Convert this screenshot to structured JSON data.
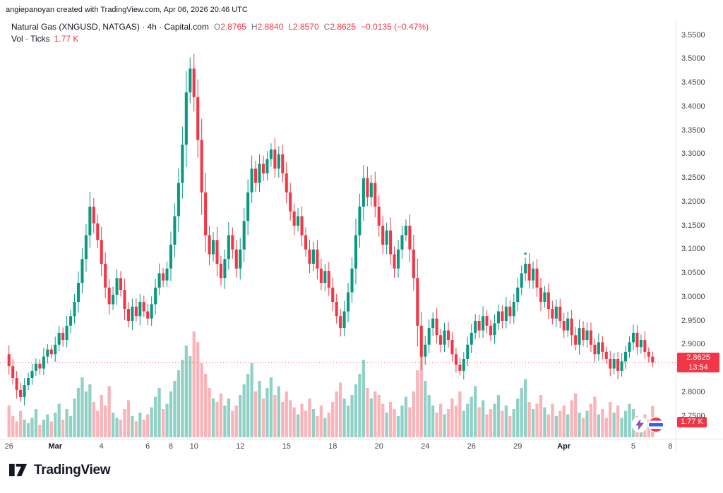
{
  "attribution": "angiepanoyan created with TradingView.com, Apr 06, 2026 20:46 UTC",
  "legend": {
    "title": "Natural Gas (XNGUSD, NATGAS) · 4h · Capital.com",
    "ohlc": {
      "o_label": "O",
      "o": "2.8765",
      "h_label": "H",
      "h": "2.8840",
      "l_label": "L",
      "l": "2.8570",
      "c_label": "C",
      "c": "2.8625",
      "change": "−0.0135 (−0.47%)"
    },
    "vol_label": "Vol · Ticks",
    "vol_value": "1.77 K"
  },
  "price_line": {
    "price": 2.8625,
    "label": "2.8625",
    "countdown": "13:54"
  },
  "volume_badge": "1.77 K",
  "price_axis": {
    "ticks": [
      "3.5500",
      "3.5000",
      "3.4500",
      "3.4000",
      "3.3500",
      "3.3000",
      "3.2500",
      "3.2000",
      "3.1500",
      "3.1000",
      "3.0500",
      "3.0000",
      "2.9500",
      "2.9000",
      "2.8500",
      "2.8000",
      "2.7500"
    ]
  },
  "time_axis": {
    "ticks": [
      {
        "label": "26",
        "d": 0
      },
      {
        "label": "Mar",
        "d": 2
      },
      {
        "label": "4",
        "d": 4
      },
      {
        "label": "6",
        "d": 6
      },
      {
        "label": "8",
        "d": 7
      },
      {
        "label": "10",
        "d": 8
      },
      {
        "label": "12",
        "d": 10
      },
      {
        "label": "15",
        "d": 12
      },
      {
        "label": "18",
        "d": 14
      },
      {
        "label": "20",
        "d": 16
      },
      {
        "label": "24",
        "d": 18
      },
      {
        "label": "26",
        "d": 20
      },
      {
        "label": "29",
        "d": 22
      },
      {
        "label": "Apr",
        "d": 24
      },
      {
        "label": "5",
        "d": 27
      },
      {
        "label": "8",
        "d": 28.6
      }
    ]
  },
  "colors": {
    "up": "#089981",
    "down": "#f23645",
    "vol_up": "rgba(8,153,129,0.45)",
    "vol_down": "rgba(242,54,69,0.38)",
    "accent_red": "#f23645",
    "axis_line": "#e0e3eb"
  },
  "logo": {
    "text": "TradingView"
  },
  "chart_data": {
    "type": "candlestick",
    "symbol": "XNGUSD",
    "name": "Natural Gas",
    "timeframe": "4h",
    "exchange": "Capital.com",
    "price_range": [
      2.75,
      3.55
    ],
    "price_step": 0.05,
    "last_price": 2.8625,
    "last_change": -0.0135,
    "last_change_pct": -0.47,
    "volume_ticks_last": 1.77,
    "first_open": 2.88,
    "bars_per_day": 6,
    "marker": {
      "index": 134,
      "price": 3.085
    },
    "candles_format": [
      "close",
      "volume_k_ticks"
    ],
    "candles": [
      [
        2.855,
        1.8
      ],
      [
        2.83,
        1.2
      ],
      [
        2.805,
        0.9
      ],
      [
        2.79,
        1.5
      ],
      [
        2.815,
        1.0
      ],
      [
        2.83,
        0.8
      ],
      [
        2.845,
        1.1
      ],
      [
        2.86,
        1.6
      ],
      [
        2.85,
        0.7
      ],
      [
        2.875,
        1.0
      ],
      [
        2.89,
        1.3
      ],
      [
        2.88,
        0.9
      ],
      [
        2.9,
        1.4
      ],
      [
        2.925,
        1.9
      ],
      [
        2.91,
        1.0
      ],
      [
        2.94,
        1.6
      ],
      [
        2.96,
        1.2
      ],
      [
        2.99,
        2.2
      ],
      [
        3.03,
        2.8
      ],
      [
        3.08,
        3.4
      ],
      [
        3.13,
        2.6
      ],
      [
        3.19,
        3.0
      ],
      [
        3.155,
        2.0
      ],
      [
        3.12,
        1.5
      ],
      [
        3.07,
        2.4
      ],
      [
        3.02,
        1.8
      ],
      [
        2.985,
        2.9
      ],
      [
        3.005,
        1.4
      ],
      [
        3.04,
        1.1
      ],
      [
        3.015,
        1.0
      ],
      [
        2.975,
        1.6
      ],
      [
        2.95,
        2.1
      ],
      [
        2.98,
        1.2
      ],
      [
        2.96,
        0.9
      ],
      [
        2.99,
        1.4
      ],
      [
        2.97,
        1.0
      ],
      [
        2.955,
        1.3
      ],
      [
        2.985,
        1.7
      ],
      [
        3.02,
        2.3
      ],
      [
        3.05,
        2.8
      ],
      [
        3.035,
        1.6
      ],
      [
        3.06,
        1.9
      ],
      [
        3.11,
        2.6
      ],
      [
        3.17,
        3.2
      ],
      [
        3.24,
        3.8
      ],
      [
        3.32,
        4.4
      ],
      [
        3.43,
        5.2
      ],
      [
        3.48,
        4.6
      ],
      [
        3.42,
        6.0
      ],
      [
        3.33,
        5.4
      ],
      [
        3.22,
        4.2
      ],
      [
        3.13,
        3.6
      ],
      [
        3.09,
        2.8
      ],
      [
        3.12,
        2.2
      ],
      [
        3.07,
        2.0
      ],
      [
        3.04,
        2.5
      ],
      [
        3.08,
        1.8
      ],
      [
        3.13,
        2.2
      ],
      [
        3.1,
        1.5
      ],
      [
        3.06,
        1.8
      ],
      [
        3.1,
        2.4
      ],
      [
        3.16,
        3.0
      ],
      [
        3.22,
        3.6
      ],
      [
        3.27,
        4.2
      ],
      [
        3.24,
        2.6
      ],
      [
        3.28,
        3.2
      ],
      [
        3.26,
        2.2
      ],
      [
        3.29,
        2.8
      ],
      [
        3.31,
        3.4
      ],
      [
        3.27,
        2.4
      ],
      [
        3.3,
        2.9
      ],
      [
        3.26,
        2.0
      ],
      [
        3.22,
        2.6
      ],
      [
        3.18,
        2.1
      ],
      [
        3.15,
        1.7
      ],
      [
        3.17,
        1.3
      ],
      [
        3.13,
        1.9
      ],
      [
        3.1,
        1.5
      ],
      [
        3.07,
        2.2
      ],
      [
        3.1,
        1.6
      ],
      [
        3.06,
        1.2
      ],
      [
        3.03,
        1.8
      ],
      [
        3.055,
        1.1
      ],
      [
        3.02,
        1.4
      ],
      [
        2.99,
        2.0
      ],
      [
        2.96,
        2.6
      ],
      [
        2.935,
        3.1
      ],
      [
        2.97,
        2.2
      ],
      [
        3.01,
        1.8
      ],
      [
        3.06,
        2.4
      ],
      [
        3.13,
        3.0
      ],
      [
        3.19,
        3.6
      ],
      [
        3.25,
        4.4
      ],
      [
        3.21,
        2.8
      ],
      [
        3.24,
        2.2
      ],
      [
        3.19,
        2.6
      ],
      [
        3.15,
        2.4
      ],
      [
        3.11,
        1.9
      ],
      [
        3.14,
        1.4
      ],
      [
        3.09,
        2.0
      ],
      [
        3.06,
        1.6
      ],
      [
        3.1,
        1.2
      ],
      [
        3.13,
        1.8
      ],
      [
        3.15,
        2.3
      ],
      [
        3.1,
        1.7
      ],
      [
        3.04,
        2.6
      ],
      [
        2.94,
        3.8
      ],
      [
        2.875,
        4.6
      ],
      [
        2.9,
        3.2
      ],
      [
        2.935,
        2.4
      ],
      [
        2.955,
        1.8
      ],
      [
        2.92,
        1.4
      ],
      [
        2.9,
        1.9
      ],
      [
        2.93,
        1.3
      ],
      [
        2.91,
        1.6
      ],
      [
        2.88,
        2.2
      ],
      [
        2.858,
        1.8
      ],
      [
        2.845,
        2.6
      ],
      [
        2.87,
        1.5
      ],
      [
        2.9,
        1.9
      ],
      [
        2.925,
        2.3
      ],
      [
        2.95,
        2.9
      ],
      [
        2.93,
        1.7
      ],
      [
        2.96,
        2.1
      ],
      [
        2.94,
        1.3
      ],
      [
        2.92,
        1.6
      ],
      [
        2.945,
        1.9
      ],
      [
        2.97,
        2.4
      ],
      [
        2.95,
        1.5
      ],
      [
        2.98,
        1.8
      ],
      [
        2.96,
        1.2
      ],
      [
        2.99,
        1.6
      ],
      [
        3.02,
        2.2
      ],
      [
        3.05,
        2.8
      ],
      [
        3.07,
        3.3
      ],
      [
        3.035,
        2.0
      ],
      [
        3.06,
        1.6
      ],
      [
        3.02,
        1.9
      ],
      [
        2.99,
        2.4
      ],
      [
        3.01,
        1.7
      ],
      [
        2.975,
        1.3
      ],
      [
        2.955,
        1.9
      ],
      [
        2.98,
        1.2
      ],
      [
        2.95,
        1.5
      ],
      [
        2.93,
        1.8
      ],
      [
        2.955,
        1.3
      ],
      [
        2.92,
        2.1
      ],
      [
        2.9,
        2.5
      ],
      [
        2.935,
        1.4
      ],
      [
        2.91,
        1.1
      ],
      [
        2.93,
        1.5
      ],
      [
        2.9,
        1.9
      ],
      [
        2.88,
        2.3
      ],
      [
        2.905,
        1.3
      ],
      [
        2.885,
        1.6
      ],
      [
        2.87,
        1.1
      ],
      [
        2.85,
        2.0
      ],
      [
        2.87,
        1.4
      ],
      [
        2.845,
        1.8
      ],
      [
        2.865,
        1.1
      ],
      [
        2.885,
        1.5
      ],
      [
        2.905,
        1.9
      ],
      [
        2.925,
        1.6
      ],
      [
        2.895,
        1.2
      ],
      [
        2.91,
        0.9
      ],
      [
        2.885,
        1.3
      ],
      [
        2.875,
        1.0
      ],
      [
        2.8625,
        1.77
      ]
    ]
  }
}
